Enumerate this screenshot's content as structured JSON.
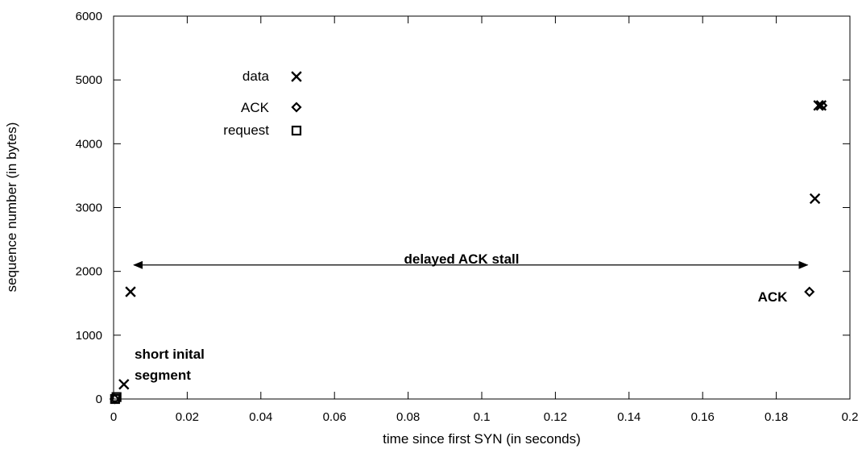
{
  "chart_data": {
    "type": "scatter",
    "xlabel": "time since first SYN (in seconds)",
    "ylabel": "sequence number (in bytes)",
    "xlim": [
      0,
      0.2
    ],
    "ylim": [
      0,
      6000
    ],
    "xticks": [
      "0",
      "0.02",
      "0.04",
      "0.06",
      "0.08",
      "0.1",
      "0.12",
      "0.14",
      "0.16",
      "0.18",
      "0.2"
    ],
    "yticks": [
      "0",
      "1000",
      "2000",
      "3000",
      "4000",
      "5000",
      "6000"
    ],
    "grid": false,
    "legend_position": "upper-left",
    "series": [
      {
        "name": "data",
        "marker": "x",
        "points": [
          [
            0.0028,
            230
          ],
          [
            0.0046,
            1680
          ],
          [
            0.1905,
            3140
          ],
          [
            0.1915,
            4600
          ],
          [
            0.1922,
            4600
          ]
        ]
      },
      {
        "name": "ACK",
        "marker": "diamond",
        "points": [
          [
            0.0003,
            0
          ],
          [
            0.189,
            1680
          ],
          [
            0.1925,
            4600
          ]
        ]
      },
      {
        "name": "request",
        "marker": "square",
        "points": [
          [
            0.0004,
            0
          ],
          [
            0.0008,
            30
          ]
        ]
      }
    ],
    "annotations": {
      "short_segment_line1": "short inital",
      "short_segment_line2": "segment",
      "stall_label": "delayed ACK stall",
      "stall_range": [
        0.0055,
        0.1885
      ],
      "stall_y": 2100,
      "ack_label": "ACK"
    }
  }
}
